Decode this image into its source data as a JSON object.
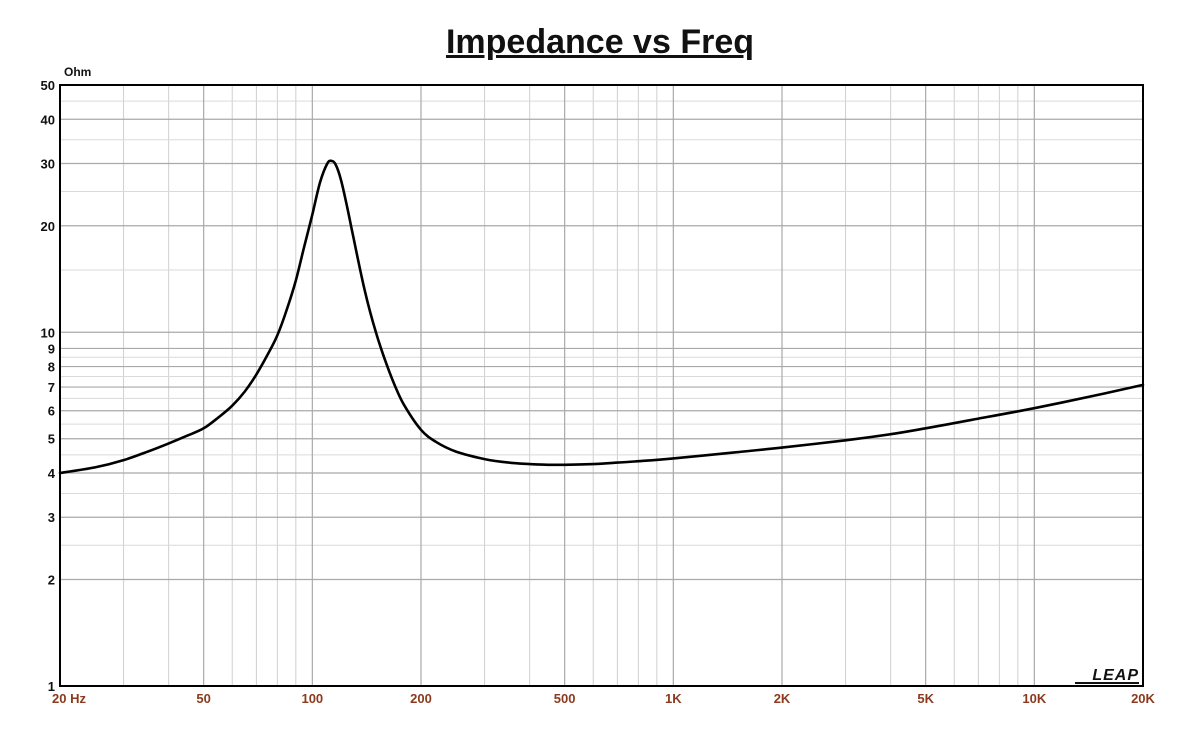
{
  "chart_data": {
    "type": "line",
    "title": "Impedance vs Freq",
    "ylabel": "Ohm",
    "x_scale": "log",
    "y_scale": "log",
    "xlim": [
      20,
      20000
    ],
    "ylim": [
      1,
      50
    ],
    "grid": true,
    "x_ticks": [
      {
        "value": 20,
        "label": "20  Hz"
      },
      {
        "value": 50,
        "label": "50"
      },
      {
        "value": 100,
        "label": "100"
      },
      {
        "value": 200,
        "label": "200"
      },
      {
        "value": 500,
        "label": "500"
      },
      {
        "value": 1000,
        "label": "1K"
      },
      {
        "value": 2000,
        "label": "2K"
      },
      {
        "value": 5000,
        "label": "5K"
      },
      {
        "value": 10000,
        "label": "10K"
      },
      {
        "value": 20000,
        "label": "20K"
      }
    ],
    "y_ticks": [
      {
        "value": 1,
        "label": "1"
      },
      {
        "value": 2,
        "label": "2"
      },
      {
        "value": 3,
        "label": "3"
      },
      {
        "value": 4,
        "label": "4"
      },
      {
        "value": 5,
        "label": "5"
      },
      {
        "value": 6,
        "label": "6"
      },
      {
        "value": 7,
        "label": "7"
      },
      {
        "value": 8,
        "label": "8"
      },
      {
        "value": 9,
        "label": "9"
      },
      {
        "value": 10,
        "label": "10"
      },
      {
        "value": 20,
        "label": "20"
      },
      {
        "value": 30,
        "label": "30"
      },
      {
        "value": 40,
        "label": "40"
      },
      {
        "value": 50,
        "label": "50"
      }
    ],
    "series": [
      {
        "color": "#000000",
        "points": [
          [
            20,
            4.0
          ],
          [
            25,
            4.15
          ],
          [
            30,
            4.35
          ],
          [
            35,
            4.6
          ],
          [
            40,
            4.85
          ],
          [
            45,
            5.1
          ],
          [
            50,
            5.35
          ],
          [
            55,
            5.75
          ],
          [
            60,
            6.2
          ],
          [
            65,
            6.8
          ],
          [
            70,
            7.6
          ],
          [
            75,
            8.6
          ],
          [
            80,
            9.8
          ],
          [
            85,
            11.6
          ],
          [
            90,
            14.0
          ],
          [
            95,
            17.5
          ],
          [
            100,
            21.5
          ],
          [
            105,
            26.5
          ],
          [
            110,
            30.0
          ],
          [
            113,
            30.5
          ],
          [
            116,
            29.8
          ],
          [
            120,
            27.0
          ],
          [
            125,
            22.5
          ],
          [
            130,
            18.5
          ],
          [
            140,
            13.0
          ],
          [
            150,
            10.0
          ],
          [
            160,
            8.2
          ],
          [
            170,
            7.0
          ],
          [
            180,
            6.2
          ],
          [
            200,
            5.3
          ],
          [
            220,
            4.9
          ],
          [
            250,
            4.6
          ],
          [
            300,
            4.38
          ],
          [
            350,
            4.28
          ],
          [
            400,
            4.24
          ],
          [
            450,
            4.22
          ],
          [
            500,
            4.22
          ],
          [
            600,
            4.24
          ],
          [
            700,
            4.28
          ],
          [
            800,
            4.32
          ],
          [
            1000,
            4.4
          ],
          [
            1500,
            4.58
          ],
          [
            2000,
            4.72
          ],
          [
            3000,
            4.95
          ],
          [
            4000,
            5.15
          ],
          [
            5000,
            5.35
          ],
          [
            7000,
            5.7
          ],
          [
            10000,
            6.1
          ],
          [
            15000,
            6.65
          ],
          [
            20000,
            7.1
          ]
        ]
      }
    ]
  },
  "logo": {
    "text": "LEAP"
  }
}
